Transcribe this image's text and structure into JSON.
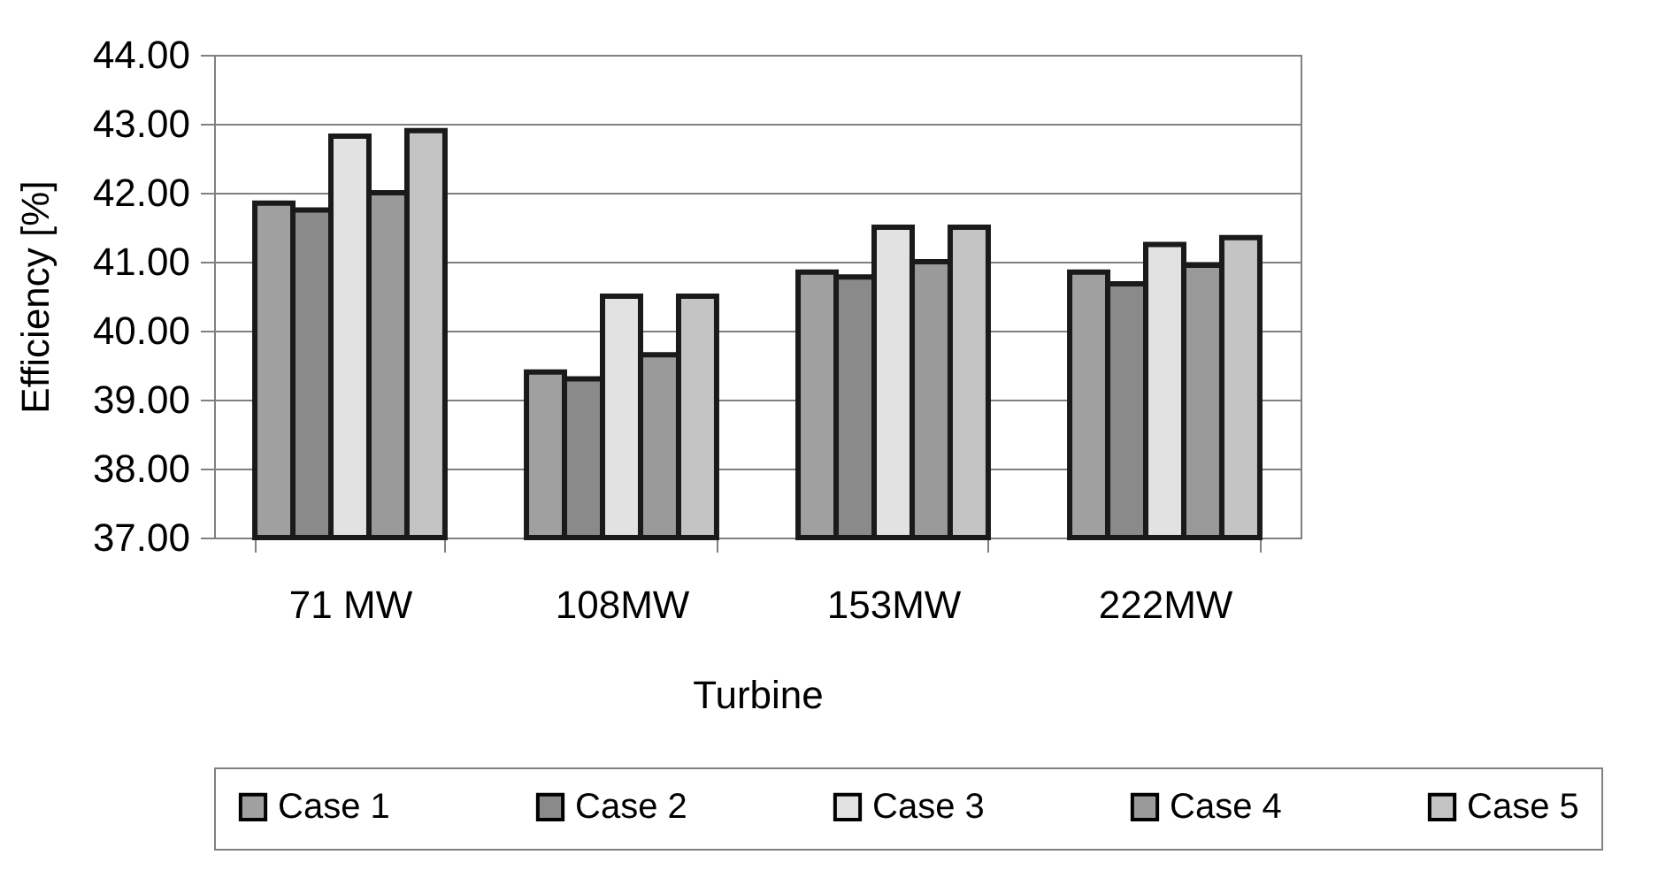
{
  "chart_data": {
    "type": "bar",
    "xlabel": "Turbine",
    "ylabel": "Efficiency [%]",
    "categories": [
      "71 MW",
      "108MW",
      "153MW",
      "222MW"
    ],
    "series": [
      {
        "name": "Case 1",
        "color": "#a0a0a0",
        "values": [
          41.85,
          39.4,
          40.85,
          40.85
        ]
      },
      {
        "name": "Case 2",
        "color": "#8a8a8a",
        "values": [
          41.75,
          39.3,
          40.78,
          40.68
        ]
      },
      {
        "name": "Case 3",
        "color": "#e2e2e2",
        "values": [
          42.82,
          40.5,
          41.5,
          41.25
        ]
      },
      {
        "name": "Case 4",
        "color": "#9a9a9a",
        "values": [
          42.0,
          39.65,
          41.0,
          40.95
        ]
      },
      {
        "name": "Case 5",
        "color": "#c4c4c4",
        "values": [
          42.9,
          40.5,
          41.5,
          41.35
        ]
      }
    ],
    "ylim": [
      37,
      44
    ],
    "yticks": [
      {
        "value": 37,
        "label": "37.00"
      },
      {
        "value": 38,
        "label": "38.00"
      },
      {
        "value": 39,
        "label": "39.00"
      },
      {
        "value": 40,
        "label": "40.00"
      },
      {
        "value": 41,
        "label": "41.00"
      },
      {
        "value": 42,
        "label": "42.00"
      },
      {
        "value": 43,
        "label": "43.00"
      },
      {
        "value": 44,
        "label": "44.00"
      }
    ],
    "grid": "y",
    "legend": "bottom"
  }
}
